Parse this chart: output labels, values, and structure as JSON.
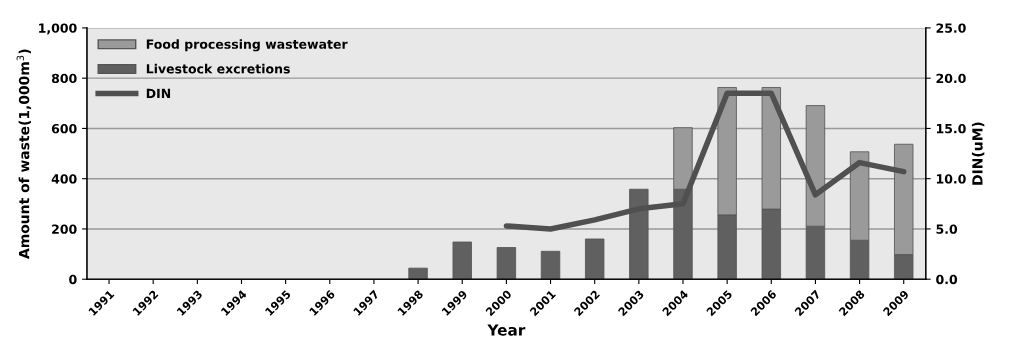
{
  "chart_data": {
    "type": "bar",
    "stacked": true,
    "xlabel": "Year",
    "ylabel": "Amount of waste(1,000m$^{3}$)",
    "y2label": "DIN(uM)",
    "categories": [
      "1991",
      "1992",
      "1993",
      "1994",
      "1995",
      "1996",
      "1997",
      "1998",
      "1999",
      "2000",
      "2001",
      "2002",
      "2003",
      "2004",
      "2005",
      "2006",
      "2007",
      "2008",
      "2009"
    ],
    "series": [
      {
        "name": "Livestock excretions",
        "color": "#606060",
        "values": [
          null,
          null,
          null,
          null,
          null,
          null,
          null,
          44,
          148,
          126,
          111,
          160,
          358,
          358,
          256,
          279,
          211,
          155,
          98
        ]
      },
      {
        "name": "Food processing wastewater",
        "color": "#9a9a9a",
        "values": [
          null,
          null,
          null,
          null,
          null,
          null,
          null,
          null,
          null,
          null,
          null,
          null,
          null,
          245,
          507,
          484,
          480,
          352,
          439
        ]
      },
      {
        "name": "DIN",
        "type": "line",
        "axis": "y2",
        "color": "#505050",
        "values": [
          null,
          null,
          null,
          null,
          null,
          null,
          null,
          null,
          null,
          5.3,
          5.0,
          5.9,
          7.0,
          7.5,
          18.5,
          18.5,
          8.4,
          11.6,
          10.7
        ]
      }
    ],
    "ylim": [
      0,
      1000
    ],
    "yticks": [
      0,
      200,
      400,
      600,
      800,
      {
        "value": 1000,
        "label": "1,000"
      }
    ],
    "y2lim": [
      0,
      25
    ],
    "y2ticks": [
      {
        "value": 0,
        "label": "0.0"
      },
      {
        "value": 5,
        "label": "5.0"
      },
      {
        "value": 10,
        "label": "10.0"
      },
      {
        "value": 15,
        "label": "15.0"
      },
      {
        "value": 20,
        "label": "20.0"
      },
      {
        "value": 25,
        "label": "25.0"
      }
    ],
    "grid": "y",
    "legend": "top left",
    "marker": "none",
    "line_style": "solid"
  }
}
